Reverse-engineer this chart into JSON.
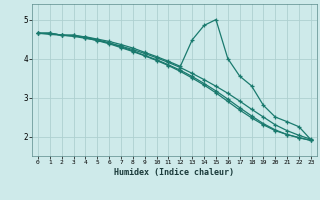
{
  "xlabel": "Humidex (Indice chaleur)",
  "bg_color": "#ceeaea",
  "grid_color": "#aed0d0",
  "line_color": "#1a7a6e",
  "xlim": [
    -0.5,
    23.5
  ],
  "ylim": [
    1.5,
    5.4
  ],
  "xticks": [
    0,
    1,
    2,
    3,
    4,
    5,
    6,
    7,
    8,
    9,
    10,
    11,
    12,
    13,
    14,
    15,
    16,
    17,
    18,
    19,
    20,
    21,
    22,
    23
  ],
  "yticks": [
    2,
    3,
    4,
    5
  ],
  "series": [
    [
      4.65,
      4.65,
      4.6,
      4.6,
      4.53,
      4.46,
      4.38,
      4.28,
      4.18,
      4.07,
      3.95,
      3.82,
      3.67,
      3.5,
      3.32,
      3.12,
      2.9,
      2.68,
      2.48,
      2.3,
      2.15,
      2.05,
      1.97,
      1.9
    ],
    [
      4.65,
      4.65,
      4.6,
      4.6,
      4.55,
      4.48,
      4.4,
      4.3,
      4.2,
      4.08,
      3.97,
      3.84,
      3.7,
      3.54,
      3.36,
      3.17,
      2.96,
      2.74,
      2.53,
      2.33,
      2.17,
      2.05,
      1.97,
      1.9
    ],
    [
      4.65,
      4.65,
      4.6,
      4.57,
      4.52,
      4.47,
      4.4,
      4.32,
      4.23,
      4.13,
      4.02,
      3.9,
      3.77,
      3.62,
      3.46,
      3.29,
      3.11,
      2.91,
      2.7,
      2.5,
      2.3,
      2.15,
      2.03,
      1.93
    ],
    [
      4.65,
      4.62,
      4.6,
      4.58,
      4.56,
      4.5,
      4.44,
      4.36,
      4.27,
      4.16,
      4.05,
      3.93,
      3.8,
      4.48,
      4.85,
      5.0,
      4.0,
      3.55,
      3.3,
      2.8,
      2.5,
      2.38,
      2.25,
      1.92
    ]
  ]
}
